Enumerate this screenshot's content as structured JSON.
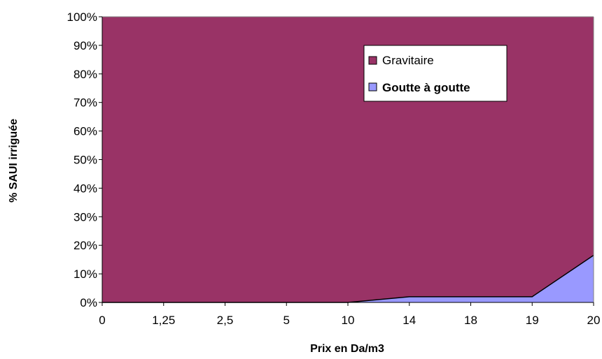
{
  "chart_data": {
    "type": "area",
    "stacking": "percent",
    "categories": [
      "0",
      "1,25",
      "2,5",
      "5",
      "10",
      "14",
      "18",
      "19",
      "20"
    ],
    "series": [
      {
        "name": "Gravitaire",
        "color": "#993366",
        "values": [
          100,
          100,
          100,
          100,
          100,
          98,
          98,
          98,
          83.5
        ]
      },
      {
        "name": "Goutte à goutte",
        "color": "#9999ff",
        "values": [
          0,
          0,
          0,
          0,
          0,
          2,
          2,
          2,
          16.5
        ]
      }
    ],
    "ylim": [
      0,
      100
    ],
    "yticks": [
      "0%",
      "10%",
      "20%",
      "30%",
      "40%",
      "50%",
      "60%",
      "70%",
      "80%",
      "90%",
      "100%"
    ],
    "xlabel": "Prix en Da/m3",
    "ylabel": "% SAUI irriguée",
    "legend": {
      "placement": "top-right",
      "entries": [
        "Gravitaire",
        "Goutte à goutte"
      ]
    },
    "grid": false
  }
}
